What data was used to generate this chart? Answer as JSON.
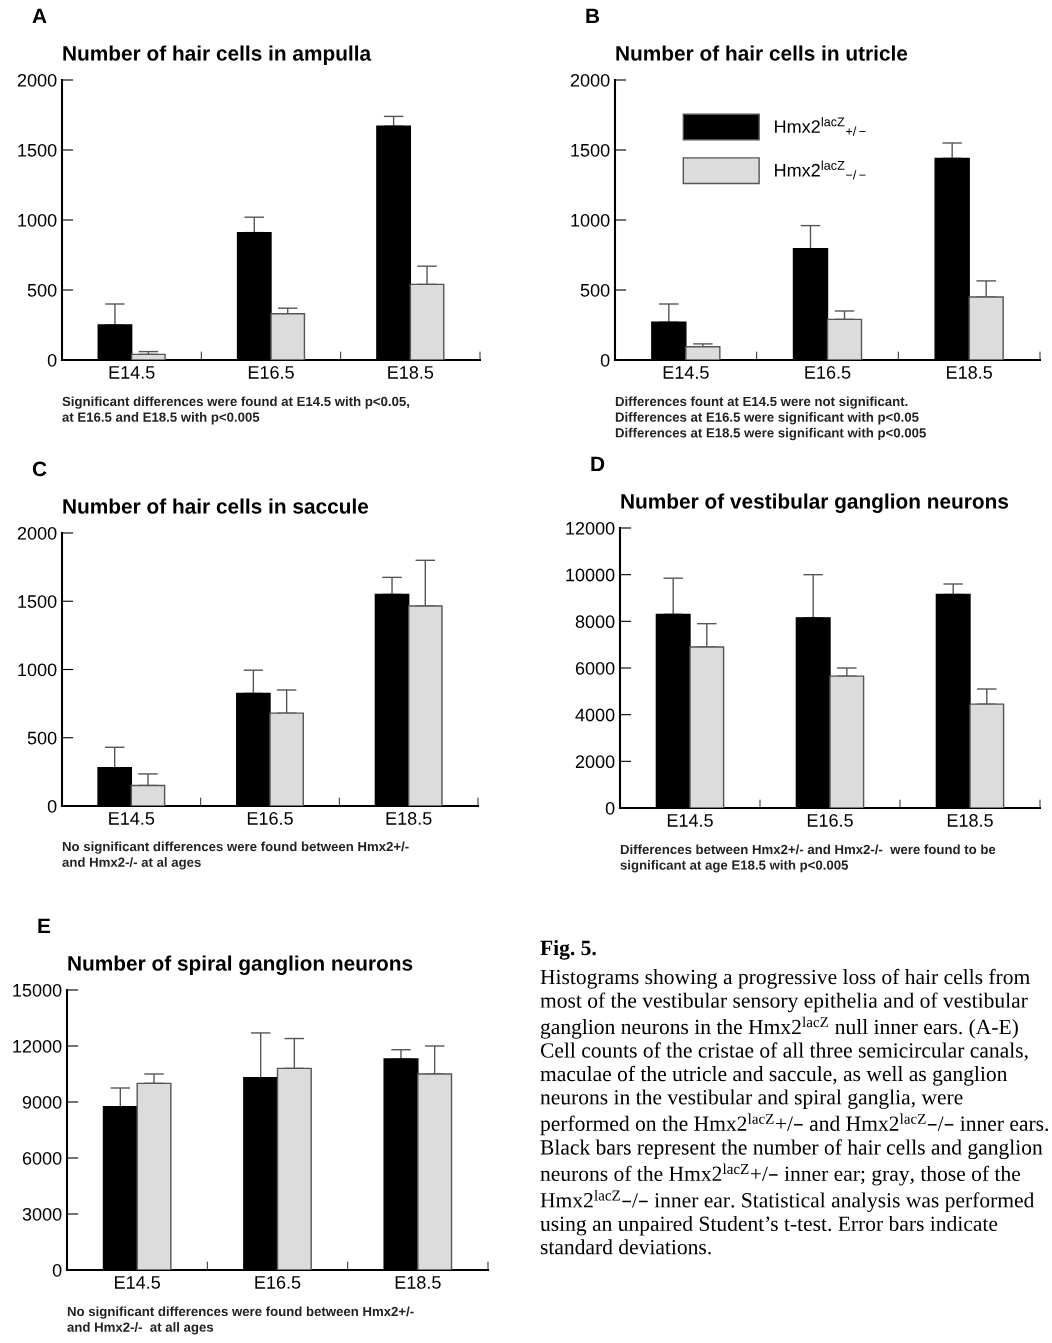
{
  "chart_data": [
    {
      "type": "bar",
      "title": "Number of hair cells in ampulla",
      "categories": [
        "E14.5",
        "E16.5",
        "E18.5"
      ],
      "ylim": [
        0,
        2000
      ],
      "yticks": [
        0,
        500,
        1000,
        1500,
        2000
      ],
      "series": [
        {
          "color": "#000000",
          "values": [
            250,
            910,
            1670
          ],
          "errors": [
            [
              250,
              400
            ],
            [
              910,
              1020
            ],
            [
              1670,
              1740
            ]
          ]
        },
        {
          "color": "#dcdcdc",
          "values": [
            40,
            330,
            540
          ],
          "errors": [
            [
              40,
              60
            ],
            [
              330,
              370
            ],
            [
              540,
              670
            ]
          ]
        }
      ],
      "annotations": [
        "A",
        "Significant differences were found at E14.5 with p<0.05,\nat E16.5 and E18.5 with p<0.005"
      ]
    },
    {
      "type": "bar",
      "title": "Number of hair cells in utricle",
      "categories": [
        "E14.5",
        "E16.5",
        "E18.5"
      ],
      "ylim": [
        0,
        2000
      ],
      "yticks": [
        0,
        500,
        1000,
        1500,
        2000
      ],
      "legend": "top left",
      "series": [
        {
          "name": "Hmx2$^{lacZ}$$_{+/−}$",
          "color": "#000000",
          "values": [
            270,
            795,
            1440
          ],
          "errors": [
            [
              270,
              400
            ],
            [
              795,
              960
            ],
            [
              1440,
              1550
            ]
          ]
        },
        {
          "name": "Hmx2$^{lacZ}$$_{−/−}$",
          "color": "#dcdcdc",
          "values": [
            95,
            290,
            450
          ],
          "errors": [
            [
              95,
              115
            ],
            [
              290,
              350
            ],
            [
              450,
              565
            ]
          ]
        }
      ],
      "annotations": [
        "B",
        "Differences fount at E14.5 were not significant.\nDifferences at E16.5 were significant with p<0.05\nDifferences at E18.5 were significant with p<0.005"
      ]
    },
    {
      "type": "bar",
      "title": "Number of hair cells in saccule",
      "categories": [
        "E14.5",
        "E16.5",
        "E18.5"
      ],
      "ylim": [
        0,
        2000
      ],
      "yticks": [
        0,
        500,
        1000,
        1500,
        2000
      ],
      "series": [
        {
          "color": "#000000",
          "values": [
            280,
            825,
            1550
          ],
          "errors": [
            [
              280,
              430
            ],
            [
              825,
              995
            ],
            [
              1550,
              1675
            ]
          ]
        },
        {
          "color": "#dcdcdc",
          "values": [
            150,
            680,
            1465
          ],
          "errors": [
            [
              150,
              235
            ],
            [
              680,
              850
            ],
            [
              1465,
              1800
            ]
          ]
        }
      ],
      "annotations": [
        "C",
        "No significant differences were found between Hmx2+/-\nand Hmx2-/- at al ages"
      ]
    },
    {
      "type": "bar",
      "title": "Number of vestibular ganglion neurons",
      "categories": [
        "E14.5",
        "E16.5",
        "E18.5"
      ],
      "ylim": [
        0,
        12000
      ],
      "yticks": [
        0,
        2000,
        4000,
        6000,
        8000,
        10000,
        12000
      ],
      "series": [
        {
          "color": "#000000",
          "values": [
            8300,
            8150,
            9150
          ],
          "errors": [
            [
              8300,
              9850
            ],
            [
              8150,
              10000
            ],
            [
              9150,
              9600
            ]
          ]
        },
        {
          "color": "#dcdcdc",
          "values": [
            6900,
            5650,
            4450
          ],
          "errors": [
            [
              6900,
              7900
            ],
            [
              5650,
              6000
            ],
            [
              4450,
              5100
            ]
          ]
        }
      ],
      "annotations": [
        "D",
        "Differences between Hmx2+/- and Hmx2-/-  were found to be\nsignificant at age E18.5 with p<0.005"
      ]
    },
    {
      "type": "bar",
      "title": "Number of spiral ganglion neurons",
      "categories": [
        "E14.5",
        "E16.5",
        "E18.5"
      ],
      "ylim": [
        0,
        15000
      ],
      "yticks": [
        0,
        3000,
        6000,
        9000,
        12000,
        15000
      ],
      "series": [
        {
          "color": "#000000",
          "values": [
            8750,
            10300,
            11300
          ],
          "errors": [
            [
              8750,
              9750
            ],
            [
              10300,
              12700
            ],
            [
              11300,
              11800
            ]
          ]
        },
        {
          "color": "#dcdcdc",
          "values": [
            10000,
            10800,
            10500
          ],
          "errors": [
            [
              10000,
              10500
            ],
            [
              10800,
              12400
            ],
            [
              10500,
              12000
            ]
          ]
        }
      ],
      "annotations": [
        "E",
        "No significant differences were found between Hmx2+/-\nand Hmx2-/-  at all ages"
      ]
    },
    {
      "type": "other",
      "annotations": [
        "Fig. 5.",
        "Histograms showing a progressive loss of hair cells from most of the vestibular sensory epithelia and of vestibular ganglion neurons in the Hmx2$^{lacZ}$ null inner ears. (A-E) Cell counts of the cristae of all three semicircular canals, maculae of the utricle and saccule, as well as ganglion neurons in the vestibular and spiral ganglia, were performed on the Hmx2$^{lacZ}$+/– and Hmx2$^{lacZ}$–/– inner ears. Black bars represent the number of hair cells and ganglion neurons of the Hmx2$^{lacZ}$+/– inner ear; gray, those of the Hmx2$^{lacZ}$–/– inner ear. Statistical analysis was performed using an unpaired Student’s t-test. Error bars indicate standard deviations."
      ]
    }
  ]
}
